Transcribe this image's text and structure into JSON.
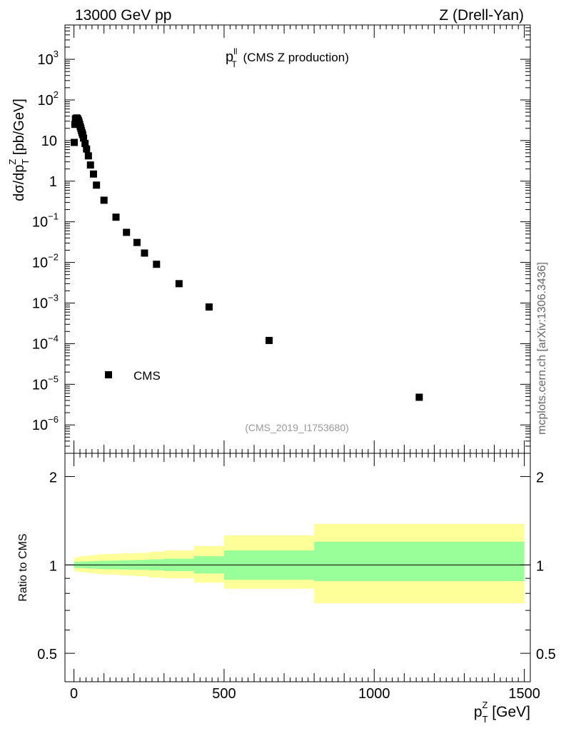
{
  "header": {
    "left": "13000 GeV pp",
    "right": "Z (Drell-Yan)"
  },
  "side_label": "mcplots.cern.ch [arXiv:1306.3436]",
  "chart_data": [
    {
      "type": "scatter",
      "title_main": "p",
      "title_sup": "ll",
      "title_sub": "T",
      "title_rest": " (CMS Z production)",
      "ylabel": "dσ/dp_T^Z [pb/GeV]",
      "ylabel_parts": {
        "a": "dσ/dp",
        "sub": "T",
        "sup": "Z",
        "b": " [pb/GeV]"
      },
      "yscale": "log",
      "xlim": [
        -30,
        1520
      ],
      "ylim": [
        2e-07,
        7000
      ],
      "ytick_labels": [
        {
          "value": 1000,
          "base": "10",
          "exp": "3"
        },
        {
          "value": 100,
          "base": "10",
          "exp": "2"
        },
        {
          "value": 10,
          "base": "10",
          "exp": ""
        },
        {
          "value": 1,
          "base": "1",
          "exp": ""
        },
        {
          "value": 0.1,
          "base": "10",
          "exp": "−1"
        },
        {
          "value": 0.01,
          "base": "10",
          "exp": "−2"
        },
        {
          "value": 0.001,
          "base": "10",
          "exp": "−3"
        },
        {
          "value": 0.0001,
          "base": "10",
          "exp": "−4"
        },
        {
          "value": 1e-05,
          "base": "10",
          "exp": "−5"
        },
        {
          "value": 1e-06,
          "base": "10",
          "exp": "−6"
        }
      ],
      "legend": {
        "label": "CMS",
        "placement": "bottom-left"
      },
      "analysis_label": "(CMS_2019_I1753680)",
      "series": [
        {
          "name": "CMS",
          "marker": "square",
          "x": [
            1,
            3,
            5,
            7,
            9,
            11,
            13,
            15,
            17,
            19,
            21,
            23,
            25,
            27,
            29,
            32,
            37,
            42,
            48,
            55,
            65,
            75,
            100,
            140,
            175,
            210,
            235,
            275,
            350,
            450,
            650,
            1150
          ],
          "y": [
            9,
            25,
            34,
            35,
            36,
            35,
            33,
            31,
            28,
            25,
            22,
            20,
            17.5,
            15.5,
            14,
            11.5,
            8.5,
            6.2,
            4.2,
            2.5,
            1.5,
            0.8,
            0.34,
            0.13,
            0.055,
            0.031,
            0.017,
            0.009,
            0.003,
            0.0008,
            0.00012,
            4.8e-06
          ]
        }
      ]
    },
    {
      "type": "area",
      "ylabel": "Ratio to CMS",
      "xlabel": "p_T^Z [GeV]",
      "xlabel_parts": {
        "a": "p",
        "sub": "T",
        "sup": "Z",
        "b": " [GeV]"
      },
      "yscale": "log",
      "xlim": [
        -30,
        1520
      ],
      "ylim": [
        0.4,
        2.4
      ],
      "ytick_labels": [
        {
          "value": 2,
          "label": "2"
        },
        {
          "value": 1,
          "label": "1"
        },
        {
          "value": 0.5,
          "label": "0.5"
        }
      ],
      "xtick_labels": [
        {
          "value": 0,
          "label": "0"
        },
        {
          "value": 500,
          "label": "500"
        },
        {
          "value": 1000,
          "label": "1000"
        },
        {
          "value": 1500,
          "label": "1500"
        }
      ],
      "reference_line": 1,
      "colors": {
        "outer_band": "#ffff99",
        "inner_band": "#99ff99",
        "markers": "#000000"
      },
      "bands": {
        "x": [
          0,
          10,
          20,
          30,
          40,
          50,
          60,
          70,
          80,
          90,
          100,
          150,
          200,
          250,
          300,
          400,
          500,
          800,
          1500
        ],
        "inner_up": [
          1.025,
          1.025,
          1.026,
          1.027,
          1.028,
          1.029,
          1.03,
          1.031,
          1.032,
          1.033,
          1.034,
          1.037,
          1.04,
          1.045,
          1.05,
          1.07,
          1.12,
          1.2
        ],
        "inner_down": [
          0.976,
          0.976,
          0.975,
          0.974,
          0.973,
          0.972,
          0.971,
          0.97,
          0.969,
          0.968,
          0.967,
          0.964,
          0.962,
          0.958,
          0.953,
          0.935,
          0.89,
          0.88
        ],
        "outer_up": [
          1.06,
          1.065,
          1.07,
          1.072,
          1.075,
          1.078,
          1.08,
          1.083,
          1.086,
          1.088,
          1.09,
          1.095,
          1.1,
          1.11,
          1.12,
          1.16,
          1.26,
          1.38
        ],
        "outer_down": [
          0.95,
          0.948,
          0.945,
          0.943,
          0.94,
          0.938,
          0.936,
          0.934,
          0.932,
          0.93,
          0.928,
          0.922,
          0.915,
          0.905,
          0.9,
          0.87,
          0.83,
          0.74
        ]
      }
    }
  ]
}
